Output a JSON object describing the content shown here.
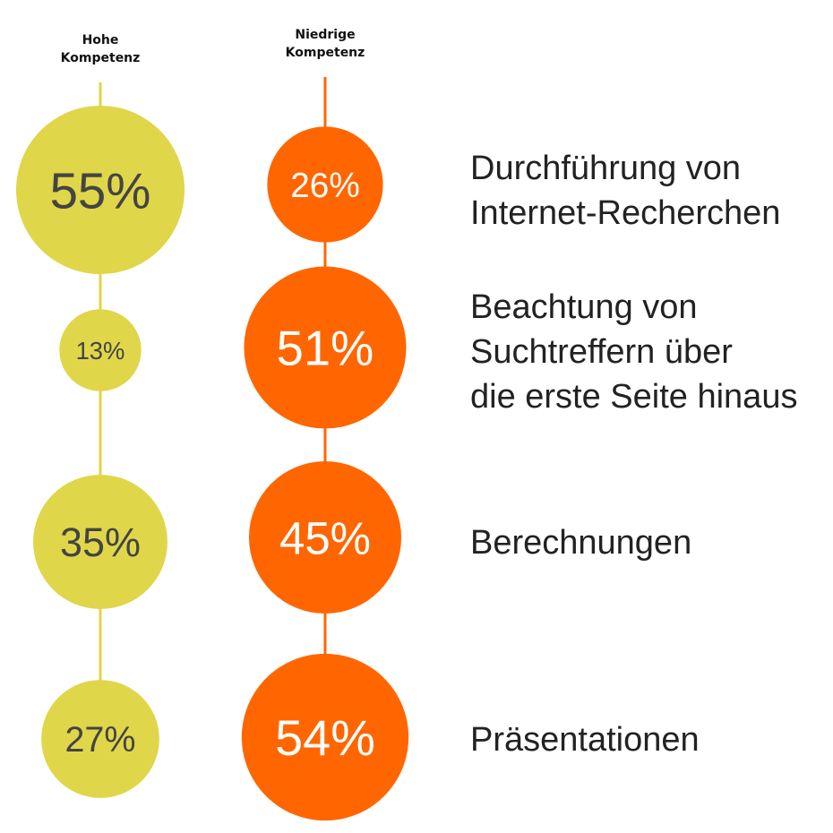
{
  "chart_data": {
    "type": "bubble",
    "series": [
      {
        "name": "Hohe Kompetenz",
        "header_lines": [
          "Hohe",
          "Kompetenz"
        ],
        "color": "#E0D64A",
        "text_color": "#444444",
        "values": [
          55,
          13,
          35,
          27
        ]
      },
      {
        "name": "Niedrige Kompetenz",
        "header_lines": [
          "Niedrige",
          "Kompetenz"
        ],
        "color": "#FF6600",
        "text_color": "#FFFFFF",
        "values": [
          26,
          51,
          45,
          54
        ]
      }
    ],
    "categories": [
      {
        "lines": [
          "Durchführung von",
          "Internet-Recherchen"
        ]
      },
      {
        "lines": [
          "Beachtung von",
          "Suchtreffern über",
          "die erste Seite hinaus"
        ]
      },
      {
        "lines": [
          "Berechnungen"
        ]
      },
      {
        "lines": [
          "Präsentationen"
        ]
      }
    ],
    "unit": "%"
  }
}
